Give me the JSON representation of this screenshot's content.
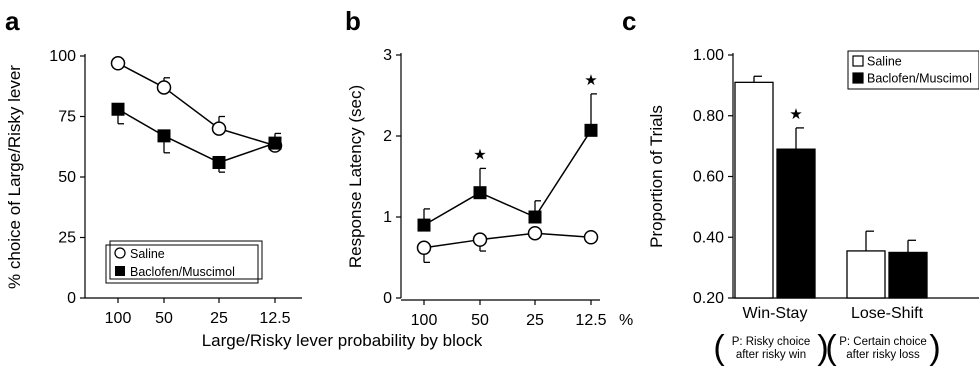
{
  "panel_labels": [
    "a",
    "b",
    "c"
  ],
  "shared_xlabel": "Large/Risky lever probability by block",
  "chart_data": [
    {
      "type": "line",
      "panel": "a",
      "ylabel": "% choice of Large/Risky lever",
      "x": [
        "100",
        "50",
        "25",
        "12.5"
      ],
      "ylim": [
        0,
        100
      ],
      "yticks": [
        0,
        25,
        50,
        75,
        100
      ],
      "legend_position": "bottom-center",
      "series": [
        {
          "name": "Saline",
          "marker": "open-circle",
          "values": [
            97,
            87,
            70,
            63
          ],
          "err": [
            0,
            4,
            5,
            5
          ]
        },
        {
          "name": "Baclofen/Muscimol",
          "marker": "filled-square",
          "values": [
            78,
            67,
            56,
            64
          ],
          "err": [
            6,
            7,
            4,
            0
          ]
        }
      ]
    },
    {
      "type": "line",
      "panel": "b",
      "ylabel": "Response Latency (sec)",
      "x": [
        "100",
        "50",
        "25",
        "12.5"
      ],
      "x_unit_suffix": "%",
      "ylim": [
        0,
        3
      ],
      "yticks": [
        0,
        1,
        2,
        3
      ],
      "series": [
        {
          "name": "Saline",
          "marker": "open-circle",
          "values": [
            0.62,
            0.72,
            0.8,
            0.75
          ],
          "err": [
            0.18,
            0.14,
            0.0,
            0.0
          ]
        },
        {
          "name": "Baclofen/Muscimol",
          "marker": "filled-square",
          "values": [
            0.9,
            1.3,
            1.0,
            2.07
          ],
          "err": [
            0.2,
            0.3,
            0.2,
            0.45
          ]
        }
      ],
      "significance_at": [
        "50",
        "12.5"
      ],
      "significance_symbol": "★"
    },
    {
      "type": "bar",
      "panel": "c",
      "ylabel": "Proportion of Trials",
      "categories": [
        "Win-Stay",
        "Lose-Shift"
      ],
      "category_notes": [
        "P: Risky choice after risky win",
        "P: Certain choice after risky loss"
      ],
      "ylim": [
        0.2,
        1.0
      ],
      "yticks": [
        "0.20",
        "0.40",
        "0.60",
        "0.80",
        "1.00"
      ],
      "legend_position": "top-right",
      "series": [
        {
          "name": "Saline",
          "fill": "#ffffff",
          "values": [
            0.91,
            0.355
          ],
          "err": [
            0.02,
            0.065
          ]
        },
        {
          "name": "Baclofen/Muscimol",
          "fill": "#000000",
          "values": [
            0.69,
            0.35
          ],
          "err": [
            0.07,
            0.04
          ]
        }
      ],
      "significance": {
        "category": "Win-Stay",
        "series": "Baclofen/Muscimol",
        "symbol": "★"
      }
    }
  ]
}
